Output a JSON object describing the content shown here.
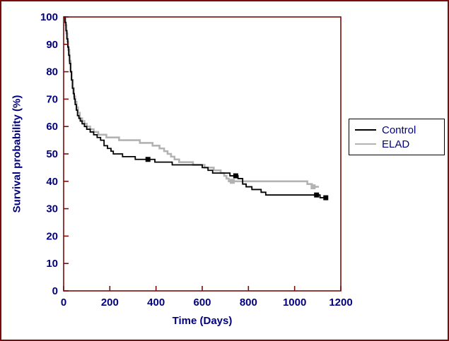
{
  "figure": {
    "colors": {
      "frame": "#7a0b0b",
      "axis_text": "#000080",
      "background": "#ffffff"
    }
  },
  "chart_data": {
    "type": "line",
    "subtype": "kaplan-meier-step",
    "title": "",
    "xlabel": "Time (Days)",
    "ylabel": "Survival probability (%)",
    "xlim": [
      0,
      1200
    ],
    "ylim": [
      0,
      100
    ],
    "xticks": [
      0,
      200,
      400,
      600,
      800,
      1000,
      1200
    ],
    "yticks": [
      0,
      10,
      20,
      30,
      40,
      50,
      60,
      70,
      80,
      90,
      100
    ],
    "grid": false,
    "legend_position": "right-outside",
    "series": [
      {
        "name": "Control",
        "color": "#000000",
        "stroke_width": 1.8,
        "points": [
          [
            0,
            100
          ],
          [
            6,
            98
          ],
          [
            10,
            95
          ],
          [
            14,
            92
          ],
          [
            18,
            89
          ],
          [
            22,
            86
          ],
          [
            26,
            83
          ],
          [
            30,
            80
          ],
          [
            34,
            77
          ],
          [
            38,
            74
          ],
          [
            42,
            72
          ],
          [
            46,
            70
          ],
          [
            50,
            68
          ],
          [
            55,
            66
          ],
          [
            60,
            64
          ],
          [
            66,
            63
          ],
          [
            72,
            62
          ],
          [
            80,
            61
          ],
          [
            90,
            60
          ],
          [
            100,
            59
          ],
          [
            115,
            58
          ],
          [
            130,
            57
          ],
          [
            145,
            56
          ],
          [
            160,
            55
          ],
          [
            175,
            53
          ],
          [
            190,
            52
          ],
          [
            205,
            51
          ],
          [
            215,
            50
          ],
          [
            255,
            49
          ],
          [
            310,
            48
          ],
          [
            360,
            48
          ],
          [
            395,
            47
          ],
          [
            470,
            46
          ],
          [
            560,
            46
          ],
          [
            600,
            45
          ],
          [
            625,
            44
          ],
          [
            645,
            43
          ],
          [
            700,
            43
          ],
          [
            720,
            42
          ],
          [
            755,
            41
          ],
          [
            775,
            39
          ],
          [
            790,
            38
          ],
          [
            815,
            37
          ],
          [
            855,
            36
          ],
          [
            875,
            35
          ],
          [
            1090,
            35
          ],
          [
            1110,
            34
          ],
          [
            1140,
            34
          ]
        ],
        "censor_markers": [
          [
            365,
            48
          ],
          [
            745,
            42
          ],
          [
            1095,
            35
          ],
          [
            1135,
            34
          ]
        ]
      },
      {
        "name": "ELAD",
        "color": "#b3b3b3",
        "stroke_width": 2.6,
        "points": [
          [
            0,
            100
          ],
          [
            8,
            97
          ],
          [
            12,
            94
          ],
          [
            16,
            91
          ],
          [
            20,
            88
          ],
          [
            25,
            84
          ],
          [
            30,
            80
          ],
          [
            35,
            77
          ],
          [
            40,
            74
          ],
          [
            45,
            71
          ],
          [
            50,
            69
          ],
          [
            56,
            67
          ],
          [
            62,
            65
          ],
          [
            70,
            63
          ],
          [
            80,
            62
          ],
          [
            90,
            61
          ],
          [
            100,
            60
          ],
          [
            115,
            59
          ],
          [
            130,
            58
          ],
          [
            150,
            57
          ],
          [
            185,
            56
          ],
          [
            240,
            55
          ],
          [
            330,
            54
          ],
          [
            385,
            53
          ],
          [
            415,
            52
          ],
          [
            435,
            51
          ],
          [
            450,
            50
          ],
          [
            465,
            49
          ],
          [
            480,
            48
          ],
          [
            500,
            47
          ],
          [
            560,
            46
          ],
          [
            610,
            45
          ],
          [
            650,
            44
          ],
          [
            680,
            43
          ],
          [
            695,
            42
          ],
          [
            705,
            41
          ],
          [
            715,
            40
          ],
          [
            1055,
            39
          ],
          [
            1075,
            38
          ],
          [
            1105,
            38
          ]
        ],
        "censor_markers": [
          [
            730,
            40
          ],
          [
            1080,
            38
          ]
        ]
      }
    ]
  }
}
